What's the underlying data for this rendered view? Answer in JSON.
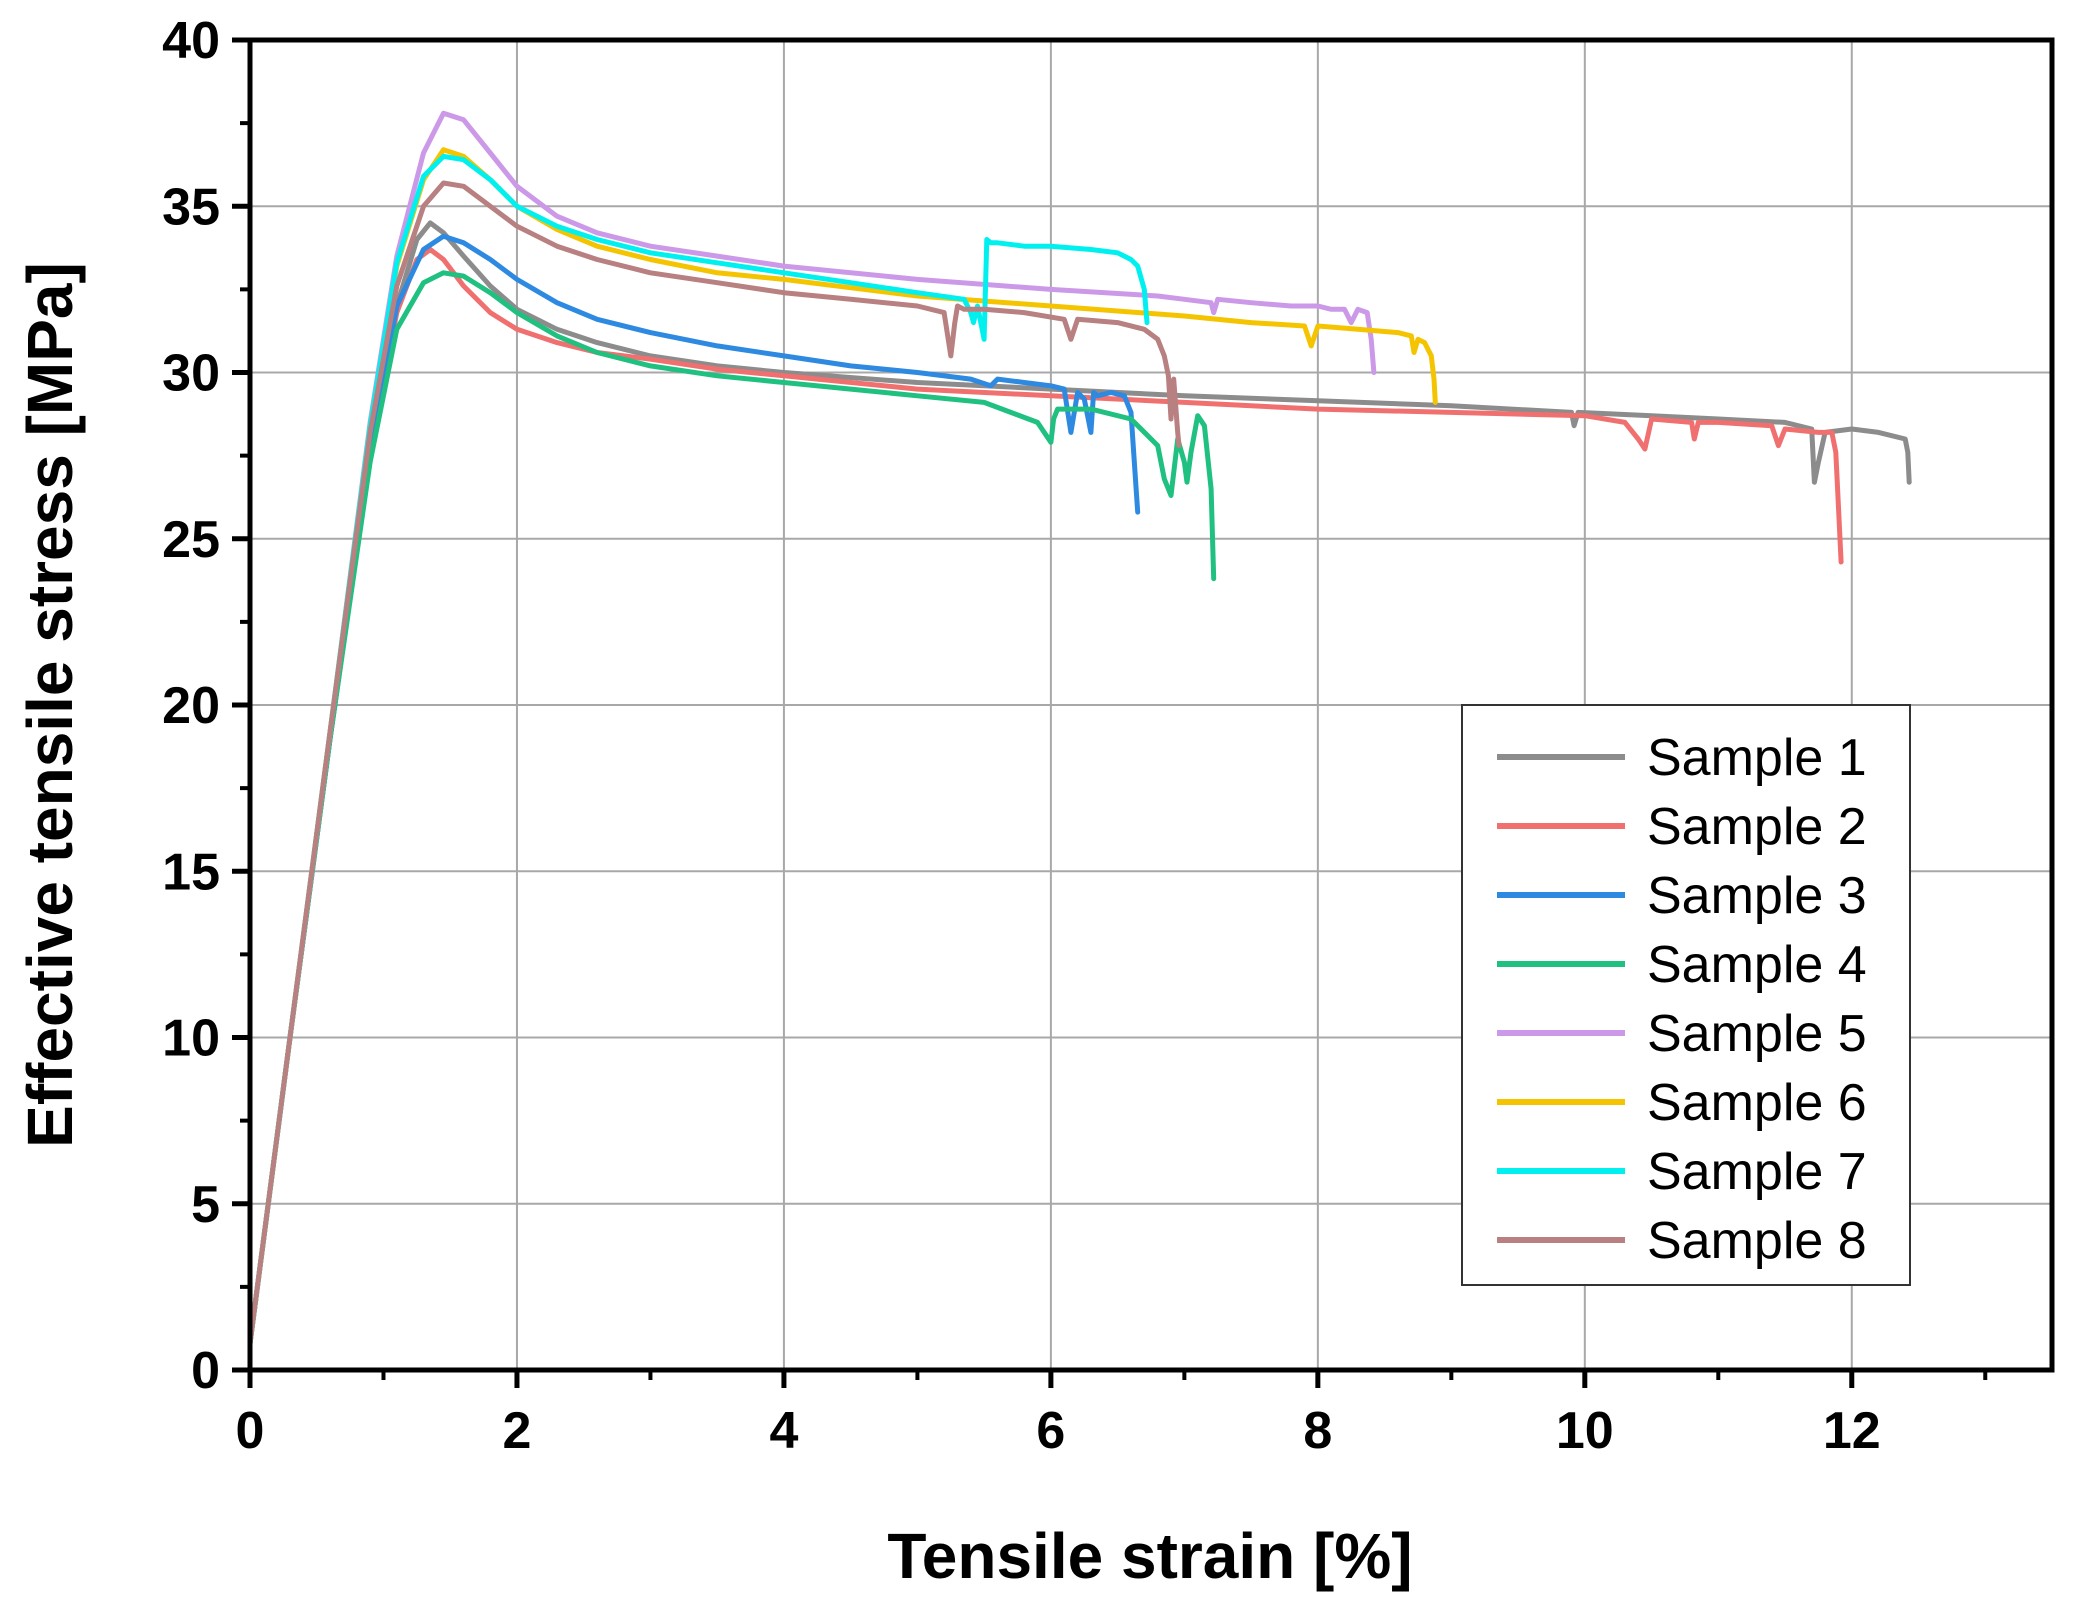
{
  "chart_data": {
    "type": "line",
    "title": "",
    "xlabel": "Tensile strain [%]",
    "ylabel": "Effective tensile stress [MPa]",
    "xlim": [
      0,
      13.5
    ],
    "ylim": [
      0,
      40
    ],
    "xticks": [
      0,
      2,
      4,
      6,
      8,
      10,
      12
    ],
    "yticks": [
      0,
      5,
      10,
      15,
      20,
      25,
      30,
      35,
      40
    ],
    "grid": true,
    "legend_position": "lower-right",
    "series": [
      {
        "name": "Sample 1",
        "color": "#8c8c8c",
        "x": [
          0,
          0.3,
          0.6,
          0.9,
          1.1,
          1.25,
          1.35,
          1.45,
          1.6,
          1.8,
          2.0,
          2.3,
          2.6,
          3.0,
          3.5,
          4.0,
          5.0,
          6.0,
          7.0,
          8.0,
          9.0,
          9.9,
          9.92,
          9.95,
          10.5,
          11.0,
          11.5,
          11.7,
          11.72,
          11.75,
          11.8,
          12.0,
          12.2,
          12.4,
          12.42,
          12.43
        ],
        "y": [
          0.8,
          10,
          19,
          27.5,
          32,
          34,
          34.5,
          34.2,
          33.5,
          32.6,
          31.9,
          31.3,
          30.9,
          30.5,
          30.2,
          30.0,
          29.7,
          29.5,
          29.3,
          29.15,
          29.0,
          28.8,
          28.4,
          28.8,
          28.7,
          28.6,
          28.5,
          28.3,
          26.7,
          27.3,
          28.2,
          28.3,
          28.2,
          28.0,
          27.6,
          26.7
        ]
      },
      {
        "name": "Sample 2",
        "color": "#f07070",
        "x": [
          0,
          0.3,
          0.6,
          0.9,
          1.1,
          1.25,
          1.35,
          1.45,
          1.6,
          1.8,
          2.0,
          2.3,
          2.6,
          3.0,
          3.5,
          4.0,
          5.0,
          6.0,
          7.0,
          8.0,
          9.0,
          10.0,
          10.3,
          10.4,
          10.45,
          10.5,
          10.8,
          10.82,
          10.85,
          11.0,
          11.4,
          11.45,
          11.5,
          11.75,
          11.85,
          11.88,
          11.9,
          11.92
        ],
        "y": [
          0.8,
          10,
          19,
          27.5,
          31.8,
          33.4,
          33.7,
          33.4,
          32.6,
          31.8,
          31.3,
          30.9,
          30.6,
          30.4,
          30.1,
          29.9,
          29.5,
          29.3,
          29.1,
          28.9,
          28.8,
          28.7,
          28.5,
          28.0,
          27.7,
          28.6,
          28.5,
          28.0,
          28.5,
          28.5,
          28.4,
          27.8,
          28.3,
          28.2,
          28.2,
          27.6,
          26.0,
          24.3
        ]
      },
      {
        "name": "Sample 3",
        "color": "#2d8ae0",
        "x": [
          0,
          0.3,
          0.6,
          0.9,
          1.1,
          1.3,
          1.45,
          1.6,
          1.8,
          2.0,
          2.3,
          2.6,
          3.0,
          3.5,
          4.0,
          4.5,
          5.0,
          5.4,
          5.55,
          5.6,
          5.8,
          6.0,
          6.1,
          6.15,
          6.2,
          6.25,
          6.3,
          6.32,
          6.35,
          6.45,
          6.55,
          6.6,
          6.63,
          6.65
        ],
        "y": [
          0.8,
          10,
          19,
          27.5,
          32,
          33.7,
          34.1,
          33.9,
          33.4,
          32.8,
          32.1,
          31.6,
          31.2,
          30.8,
          30.5,
          30.2,
          30.0,
          29.8,
          29.6,
          29.8,
          29.7,
          29.6,
          29.5,
          28.2,
          29.4,
          29.2,
          28.2,
          29.4,
          29.3,
          29.4,
          29.3,
          28.8,
          27.0,
          25.8
        ]
      },
      {
        "name": "Sample 4",
        "color": "#20c080",
        "x": [
          0,
          0.3,
          0.6,
          0.9,
          1.1,
          1.3,
          1.45,
          1.6,
          1.8,
          2.0,
          2.3,
          2.6,
          3.0,
          3.5,
          4.0,
          4.5,
          5.0,
          5.5,
          5.9,
          6.0,
          6.02,
          6.05,
          6.3,
          6.6,
          6.8,
          6.85,
          6.9,
          6.95,
          7.0,
          7.02,
          7.05,
          7.1,
          7.15,
          7.2,
          7.22
        ],
        "y": [
          0.8,
          10,
          19,
          27.3,
          31.3,
          32.7,
          33.0,
          32.9,
          32.4,
          31.8,
          31.1,
          30.6,
          30.2,
          29.9,
          29.7,
          29.5,
          29.3,
          29.1,
          28.5,
          27.9,
          28.6,
          28.9,
          28.9,
          28.6,
          27.8,
          26.8,
          26.3,
          28.0,
          27.3,
          26.7,
          27.6,
          28.7,
          28.4,
          26.5,
          23.8
        ]
      },
      {
        "name": "Sample 5",
        "color": "#cc99e8",
        "x": [
          0,
          0.3,
          0.6,
          0.9,
          1.1,
          1.3,
          1.45,
          1.6,
          1.8,
          2.0,
          2.3,
          2.6,
          3.0,
          3.5,
          4.0,
          5.0,
          6.0,
          6.8,
          7.0,
          7.2,
          7.22,
          7.25,
          7.5,
          7.8,
          8.0,
          8.1,
          8.2,
          8.25,
          8.3,
          8.37,
          8.4,
          8.42
        ],
        "y": [
          0.8,
          10,
          19.2,
          28.5,
          33.5,
          36.6,
          37.8,
          37.6,
          36.6,
          35.6,
          34.7,
          34.2,
          33.8,
          33.5,
          33.2,
          32.8,
          32.5,
          32.3,
          32.2,
          32.1,
          31.8,
          32.2,
          32.1,
          32.0,
          32.0,
          31.9,
          31.9,
          31.5,
          31.9,
          31.8,
          31.0,
          30.0
        ]
      },
      {
        "name": "Sample 6",
        "color": "#f5c400",
        "x": [
          0,
          0.3,
          0.6,
          0.9,
          1.1,
          1.3,
          1.45,
          1.6,
          1.8,
          2.0,
          2.3,
          2.6,
          3.0,
          3.5,
          4.0,
          5.0,
          6.0,
          7.0,
          7.5,
          7.9,
          7.95,
          8.0,
          8.3,
          8.6,
          8.7,
          8.72,
          8.75,
          8.8,
          8.85,
          8.87,
          8.88
        ],
        "y": [
          0.8,
          10,
          19.2,
          28.4,
          33.2,
          35.8,
          36.7,
          36.5,
          35.8,
          35.0,
          34.3,
          33.8,
          33.4,
          33.0,
          32.8,
          32.3,
          32.0,
          31.7,
          31.5,
          31.4,
          30.8,
          31.4,
          31.3,
          31.2,
          31.1,
          30.6,
          31.0,
          30.9,
          30.5,
          29.8,
          29.1
        ]
      },
      {
        "name": "Sample 7",
        "color": "#00f0f0",
        "x": [
          0,
          0.3,
          0.6,
          0.9,
          1.1,
          1.3,
          1.45,
          1.6,
          1.8,
          2.0,
          2.3,
          2.6,
          3.0,
          3.5,
          4.0,
          4.5,
          5.0,
          5.35,
          5.4,
          5.42,
          5.45,
          5.5,
          5.52,
          5.55,
          5.6,
          5.8,
          6.0,
          6.3,
          6.5,
          6.6,
          6.65,
          6.7,
          6.72
        ],
        "y": [
          0.8,
          10,
          19.2,
          28.4,
          33.3,
          35.9,
          36.5,
          36.4,
          35.8,
          35.0,
          34.4,
          34.0,
          33.6,
          33.3,
          33.0,
          32.7,
          32.4,
          32.2,
          31.8,
          31.5,
          32.0,
          31.0,
          34.0,
          33.9,
          33.9,
          33.8,
          33.8,
          33.7,
          33.6,
          33.4,
          33.2,
          32.5,
          31.5
        ]
      },
      {
        "name": "Sample 8",
        "color": "#b88080",
        "x": [
          0,
          0.3,
          0.6,
          0.9,
          1.1,
          1.3,
          1.45,
          1.6,
          1.8,
          2.0,
          2.3,
          2.6,
          3.0,
          3.5,
          4.0,
          4.5,
          5.0,
          5.2,
          5.25,
          5.28,
          5.3,
          5.35,
          5.5,
          5.8,
          6.1,
          6.15,
          6.2,
          6.5,
          6.7,
          6.8,
          6.85,
          6.88,
          6.9,
          6.92,
          6.95,
          6.96
        ],
        "y": [
          0.8,
          10,
          19.2,
          28.2,
          32.6,
          35.0,
          35.7,
          35.6,
          35.0,
          34.4,
          33.8,
          33.4,
          33.0,
          32.7,
          32.4,
          32.2,
          32.0,
          31.8,
          30.5,
          31.5,
          32.0,
          31.9,
          31.9,
          31.8,
          31.6,
          31.0,
          31.6,
          31.5,
          31.3,
          31.0,
          30.5,
          29.9,
          28.6,
          29.8,
          28.2,
          27.8
        ]
      }
    ]
  }
}
